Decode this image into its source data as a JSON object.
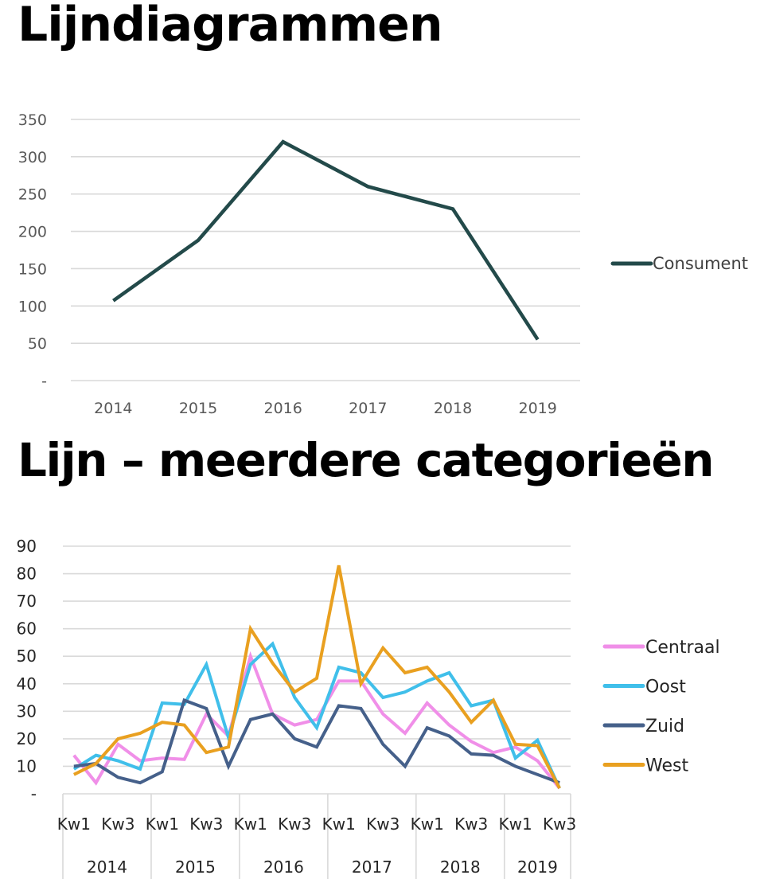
{
  "page": {
    "title1": "Lijndiagrammen",
    "title2": "Lijn – meerdere categorieën"
  },
  "chart_data": [
    {
      "type": "line",
      "title": "Lijndiagrammen",
      "xlabel": "",
      "ylabel": "",
      "categories": [
        "2014",
        "2015",
        "2016",
        "2017",
        "2018",
        "2019"
      ],
      "series": [
        {
          "name": "Consument",
          "color": "#234a4a",
          "values": [
            107,
            188,
            320,
            260,
            230,
            55
          ]
        }
      ],
      "ylim": [
        0,
        350
      ],
      "yticks": [
        0,
        50,
        100,
        150,
        200,
        250,
        300,
        350
      ],
      "ytick_labels": [
        "-",
        "50",
        "100",
        "150",
        "200",
        "250",
        "300",
        "350"
      ],
      "grid": true,
      "legend_position": "right"
    },
    {
      "type": "line",
      "title": "Lijn – meerdere categorieën",
      "xlabel": "",
      "ylabel": "",
      "x": [
        "2014 Kw1",
        "2014 Kw2",
        "2014 Kw3",
        "2014 Kw4",
        "2015 Kw1",
        "2015 Kw2",
        "2015 Kw3",
        "2015 Kw4",
        "2016 Kw1",
        "2016 Kw2",
        "2016 Kw3",
        "2016 Kw4",
        "2017 Kw1",
        "2017 Kw2",
        "2017 Kw3",
        "2017 Kw4",
        "2018 Kw1",
        "2018 Kw2",
        "2018 Kw3",
        "2018 Kw4",
        "2019 Kw1",
        "2019 Kw2",
        "2019 Kw3"
      ],
      "quarter_tick_labels": [
        "Kw1",
        "Kw3",
        "Kw1",
        "Kw3",
        "Kw1",
        "Kw3",
        "Kw1",
        "Kw3",
        "Kw1",
        "Kw3",
        "Kw1",
        "Kw3"
      ],
      "year_groups": [
        {
          "label": "2014",
          "count": 4
        },
        {
          "label": "2015",
          "count": 4
        },
        {
          "label": "2016",
          "count": 4
        },
        {
          "label": "2017",
          "count": 4
        },
        {
          "label": "2018",
          "count": 4
        },
        {
          "label": "2019",
          "count": 3
        }
      ],
      "series": [
        {
          "name": "Centraal",
          "color": "#f08fe8",
          "values": [
            14,
            4,
            18,
            12,
            13,
            12.5,
            29,
            21,
            50,
            29,
            25,
            27,
            41,
            41,
            29,
            22,
            33,
            25,
            19,
            15,
            17,
            12,
            2
          ]
        },
        {
          "name": "Oost",
          "color": "#40bfea",
          "values": [
            9,
            14,
            12,
            9,
            33,
            32.5,
            47,
            20.5,
            47,
            54.5,
            35,
            24,
            46,
            44,
            35,
            37,
            41,
            44,
            32,
            34,
            13,
            19.5,
            2
          ]
        },
        {
          "name": "Zuid",
          "color": "#45608a",
          "values": [
            10,
            11,
            6,
            4,
            8,
            34,
            31,
            10,
            27,
            29,
            20,
            17,
            32,
            31,
            18,
            10,
            24,
            21,
            14.5,
            14,
            10,
            7,
            4
          ]
        },
        {
          "name": "West",
          "color": "#e9a020",
          "values": [
            7,
            11,
            20,
            22,
            26,
            25,
            15,
            17,
            60,
            47.5,
            37,
            42,
            83,
            40,
            53,
            44,
            46,
            37,
            26,
            34,
            18,
            17.5,
            2
          ]
        }
      ],
      "ylim": [
        0,
        90
      ],
      "yticks": [
        0,
        10,
        20,
        30,
        40,
        50,
        60,
        70,
        80,
        90
      ],
      "ytick_labels": [
        "-",
        "10",
        "20",
        "30",
        "40",
        "50",
        "60",
        "70",
        "80",
        "90"
      ],
      "grid": true,
      "legend_position": "right"
    }
  ]
}
